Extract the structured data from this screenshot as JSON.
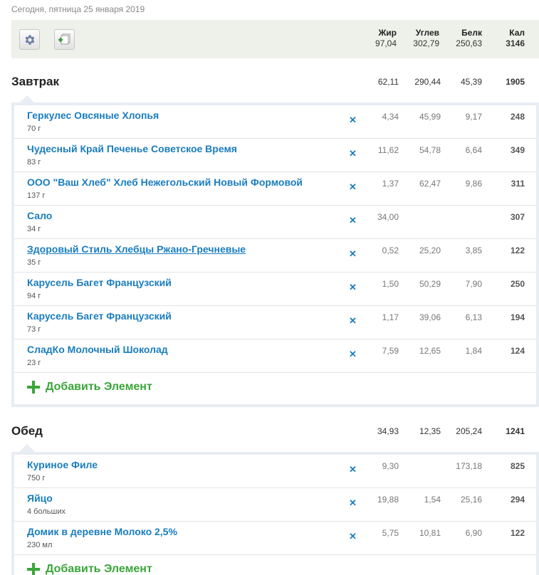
{
  "date": "Сегодня, пятница 25 января 2019",
  "header": {
    "columns": [
      "Жир",
      "Углев",
      "Белк",
      "Кал"
    ],
    "totals": [
      "97,04",
      "302,79",
      "250,63",
      "3146"
    ]
  },
  "add_label": "Добавить Элемент",
  "meals": [
    {
      "title": "Завтрак",
      "totals": [
        "62,11",
        "290,44",
        "45,39",
        "1905"
      ],
      "items": [
        {
          "name": "Геркулес Овсяные Хлопья",
          "qty": "70 г",
          "fat": "4,34",
          "carb": "45,99",
          "prot": "9,17",
          "cal": "248"
        },
        {
          "name": "Чудесный Край Печенье Советское Время",
          "qty": "83 г",
          "fat": "11,62",
          "carb": "54,78",
          "prot": "6,64",
          "cal": "349"
        },
        {
          "name": "ООО \"Ваш Хлеб\" Хлеб Нежегольский Новый Формовой",
          "qty": "137 г",
          "fat": "1,37",
          "carb": "62,47",
          "prot": "9,86",
          "cal": "311"
        },
        {
          "name": "Сало",
          "qty": "34 г",
          "fat": "34,00",
          "carb": "",
          "prot": "",
          "cal": "307"
        },
        {
          "name": "Здоровый Стиль Хлебцы Ржано-Гречневые",
          "qty": "35 г",
          "fat": "0,52",
          "carb": "25,20",
          "prot": "3,85",
          "cal": "122"
        },
        {
          "name": "Карусель Багет Французский",
          "qty": "94 г",
          "fat": "1,50",
          "carb": "50,29",
          "prot": "7,90",
          "cal": "250"
        },
        {
          "name": "Карусель Багет Французский",
          "qty": "73 г",
          "fat": "1,17",
          "carb": "39,06",
          "prot": "6,13",
          "cal": "194"
        },
        {
          "name": "СладКо Молочный Шоколад",
          "qty": "23 г",
          "fat": "7,59",
          "carb": "12,65",
          "prot": "1,84",
          "cal": "124"
        }
      ]
    },
    {
      "title": "Обед",
      "totals": [
        "34,93",
        "12,35",
        "205,24",
        "1241"
      ],
      "items": [
        {
          "name": "Куриное Филе",
          "qty": "750 г",
          "fat": "9,30",
          "carb": "",
          "prot": "173,18",
          "cal": "825"
        },
        {
          "name": "Яйцо",
          "qty": "4 больших",
          "fat": "19,88",
          "carb": "1,54",
          "prot": "25,16",
          "cal": "294"
        },
        {
          "name": "Домик в деревне Молоко 2,5%",
          "qty": "230 мл",
          "fat": "5,75",
          "carb": "10,81",
          "prot": "6,90",
          "cal": "122"
        }
      ]
    }
  ],
  "icons": {
    "settings": "gear-icon",
    "add_item": "add-item-icon",
    "delete": "delete-x-icon",
    "add": "plus-icon"
  },
  "colors": {
    "link": "#1a7dbf",
    "add": "#3aa53a",
    "toolbar_bg": "#eef1ea"
  }
}
